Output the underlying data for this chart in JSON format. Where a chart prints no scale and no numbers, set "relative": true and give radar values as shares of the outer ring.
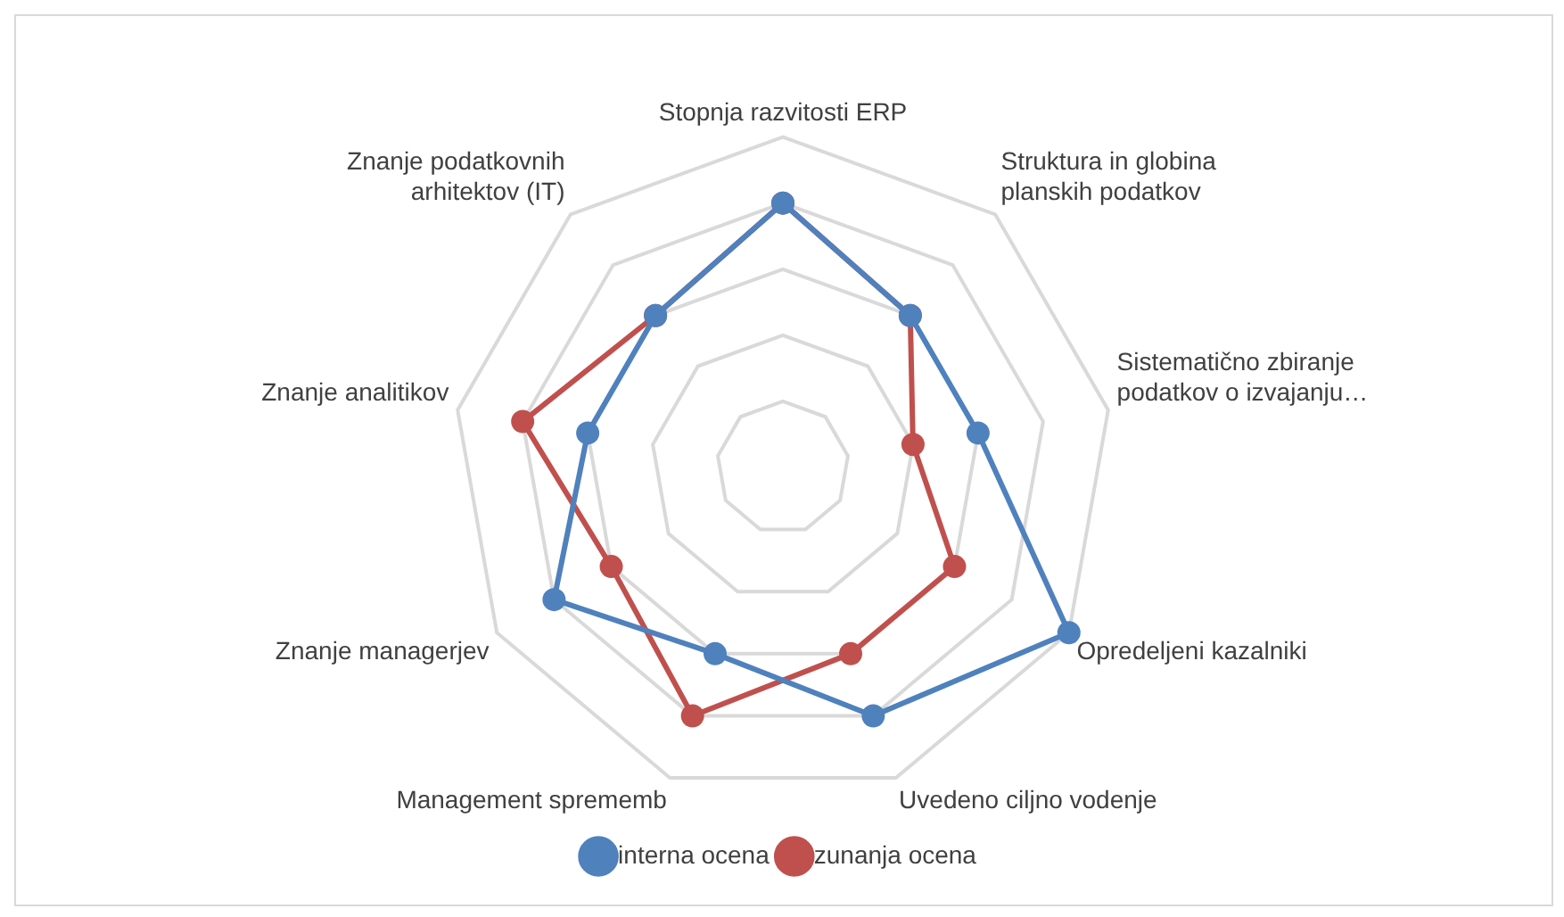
{
  "chart_data": {
    "type": "radar",
    "relative": true,
    "categories": [
      "Stopnja razvitosti ERP",
      "Struktura in globina planskih podatkov",
      "Sistematično zbiranje podatkov o izvajanju…",
      "Opredeljeni kazalniki",
      "Uvedeno ciljno vodenje",
      "Management sprememb",
      "Znanje managerjev",
      "Znanje analitikov",
      "Znanje podatkovnih arhitektov (IT)"
    ],
    "series": [
      {
        "name": "interna ocena",
        "color": "#4f81bd",
        "values": [
          0.8,
          0.6,
          0.6,
          1.0,
          0.8,
          0.6,
          0.8,
          0.6,
          0.6
        ]
      },
      {
        "name": "zunanja ocena",
        "color": "#c0504d",
        "values": [
          0.8,
          0.6,
          0.4,
          0.6,
          0.6,
          0.8,
          0.6,
          0.8,
          0.6
        ]
      }
    ],
    "grid": true,
    "legend": "bottom",
    "marker": "circle",
    "line_style": "solid"
  }
}
